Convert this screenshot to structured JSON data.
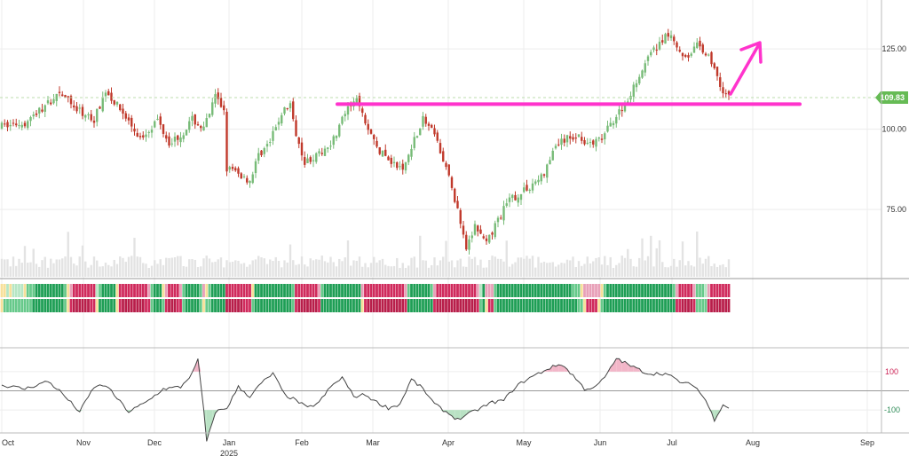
{
  "chart_data": {
    "type": "candlestick",
    "months": [
      "Oct",
      "Nov",
      "Dec",
      "Jan",
      "Feb",
      "Mar",
      "Apr",
      "May",
      "Jun",
      "Jul",
      "Aug",
      "Sep"
    ],
    "year_label": "2025",
    "price_axis": {
      "ticks": [
        "125.00",
        "100.00",
        "75.00"
      ],
      "tick_values": [
        125,
        100,
        75
      ],
      "ylim": [
        56,
        138
      ]
    },
    "last_price": {
      "value": 109.83,
      "label": "109.83"
    },
    "support_line_value": 107.8,
    "oscillator_axis": {
      "ticks": [
        "100",
        "-100"
      ],
      "tick_values": [
        100,
        -100
      ],
      "ylim": [
        -220,
        220
      ]
    },
    "price_path": [
      {
        "i": 0,
        "p": 101
      },
      {
        "i": 8,
        "p": 102
      },
      {
        "i": 16,
        "p": 108
      },
      {
        "i": 20,
        "p": 112
      },
      {
        "i": 26,
        "p": 106
      },
      {
        "i": 32,
        "p": 103
      },
      {
        "i": 36,
        "p": 112
      },
      {
        "i": 42,
        "p": 105
      },
      {
        "i": 48,
        "p": 97
      },
      {
        "i": 54,
        "p": 103
      },
      {
        "i": 58,
        "p": 96
      },
      {
        "i": 62,
        "p": 98
      },
      {
        "i": 66,
        "p": 103
      },
      {
        "i": 70,
        "p": 100
      },
      {
        "i": 74,
        "p": 110
      },
      {
        "i": 77,
        "p": 106
      },
      {
        "i": 78,
        "p": 88
      },
      {
        "i": 82,
        "p": 86
      },
      {
        "i": 86,
        "p": 84
      },
      {
        "i": 89,
        "p": 92
      },
      {
        "i": 93,
        "p": 96
      },
      {
        "i": 97,
        "p": 105
      },
      {
        "i": 100,
        "p": 108
      },
      {
        "i": 101,
        "p": 102
      },
      {
        "i": 105,
        "p": 90
      },
      {
        "i": 110,
        "p": 92
      },
      {
        "i": 115,
        "p": 97
      },
      {
        "i": 119,
        "p": 105
      },
      {
        "i": 123,
        "p": 109
      },
      {
        "i": 127,
        "p": 100
      },
      {
        "i": 131,
        "p": 93
      },
      {
        "i": 135,
        "p": 90
      },
      {
        "i": 139,
        "p": 87
      },
      {
        "i": 142,
        "p": 95
      },
      {
        "i": 146,
        "p": 103
      },
      {
        "i": 150,
        "p": 98
      },
      {
        "i": 154,
        "p": 88
      },
      {
        "i": 158,
        "p": 75
      },
      {
        "i": 161,
        "p": 62
      },
      {
        "i": 164,
        "p": 70
      },
      {
        "i": 168,
        "p": 64
      },
      {
        "i": 172,
        "p": 72
      },
      {
        "i": 176,
        "p": 78
      },
      {
        "i": 180,
        "p": 80
      },
      {
        "i": 184,
        "p": 83
      },
      {
        "i": 188,
        "p": 86
      },
      {
        "i": 192,
        "p": 95
      },
      {
        "i": 196,
        "p": 97
      },
      {
        "i": 200,
        "p": 98
      },
      {
        "i": 204,
        "p": 95
      },
      {
        "i": 208,
        "p": 97
      },
      {
        "i": 212,
        "p": 103
      },
      {
        "i": 216,
        "p": 108
      },
      {
        "i": 220,
        "p": 115
      },
      {
        "i": 224,
        "p": 122
      },
      {
        "i": 228,
        "p": 127
      },
      {
        "i": 232,
        "p": 130
      },
      {
        "i": 235,
        "p": 124
      },
      {
        "i": 238,
        "p": 123
      },
      {
        "i": 241,
        "p": 126
      },
      {
        "i": 244,
        "p": 124
      },
      {
        "i": 247,
        "p": 119
      },
      {
        "i": 250,
        "p": 112
      },
      {
        "i": 252,
        "p": 110
      }
    ],
    "oscillator_path": [
      {
        "i": 0,
        "v": 30
      },
      {
        "i": 8,
        "v": 10
      },
      {
        "i": 16,
        "v": 50
      },
      {
        "i": 20,
        "v": 0
      },
      {
        "i": 27,
        "v": -110
      },
      {
        "i": 32,
        "v": 20
      },
      {
        "i": 36,
        "v": 30
      },
      {
        "i": 40,
        "v": -40
      },
      {
        "i": 44,
        "v": -110
      },
      {
        "i": 50,
        "v": -60
      },
      {
        "i": 56,
        "v": 10
      },
      {
        "i": 62,
        "v": 20
      },
      {
        "i": 66,
        "v": 90
      },
      {
        "i": 68,
        "v": 160
      },
      {
        "i": 70,
        "v": -100
      },
      {
        "i": 71,
        "v": -270
      },
      {
        "i": 74,
        "v": -110
      },
      {
        "i": 78,
        "v": -90
      },
      {
        "i": 82,
        "v": 20
      },
      {
        "i": 86,
        "v": -30
      },
      {
        "i": 90,
        "v": 40
      },
      {
        "i": 94,
        "v": 90
      },
      {
        "i": 98,
        "v": -20
      },
      {
        "i": 102,
        "v": -50
      },
      {
        "i": 106,
        "v": -90
      },
      {
        "i": 110,
        "v": -60
      },
      {
        "i": 114,
        "v": 20
      },
      {
        "i": 118,
        "v": 70
      },
      {
        "i": 122,
        "v": -30
      },
      {
        "i": 126,
        "v": -20
      },
      {
        "i": 130,
        "v": -60
      },
      {
        "i": 134,
        "v": -90
      },
      {
        "i": 138,
        "v": -70
      },
      {
        "i": 142,
        "v": 60
      },
      {
        "i": 146,
        "v": 10
      },
      {
        "i": 150,
        "v": -70
      },
      {
        "i": 154,
        "v": -110
      },
      {
        "i": 158,
        "v": -150
      },
      {
        "i": 162,
        "v": -120
      },
      {
        "i": 166,
        "v": -90
      },
      {
        "i": 170,
        "v": -60
      },
      {
        "i": 174,
        "v": -50
      },
      {
        "i": 178,
        "v": 20
      },
      {
        "i": 182,
        "v": 60
      },
      {
        "i": 186,
        "v": 90
      },
      {
        "i": 190,
        "v": 120
      },
      {
        "i": 194,
        "v": 140
      },
      {
        "i": 198,
        "v": 80
      },
      {
        "i": 202,
        "v": 10
      },
      {
        "i": 206,
        "v": 20
      },
      {
        "i": 210,
        "v": 90
      },
      {
        "i": 213,
        "v": 170
      },
      {
        "i": 218,
        "v": 130
      },
      {
        "i": 224,
        "v": 90
      },
      {
        "i": 230,
        "v": 90
      },
      {
        "i": 236,
        "v": 40
      },
      {
        "i": 240,
        "v": 30
      },
      {
        "i": 244,
        "v": -50
      },
      {
        "i": 247,
        "v": -150
      },
      {
        "i": 250,
        "v": -70
      },
      {
        "i": 252,
        "v": -90
      }
    ],
    "colors": {
      "up": "#77bb77",
      "down": "#c0392b",
      "volume": "#e3e3e3",
      "grid": "#ececec",
      "support_line": "#ff33cc",
      "arrow": "#ff33cc",
      "last_price_badge": "#66bb55",
      "osc_line": "#444444",
      "osc_pos_fill": "#f2b6c8",
      "osc_neg_fill": "#b9e2c4",
      "osc_pos_label": "#cc2255",
      "osc_neg_label": "#2e8b57",
      "tape_colors": [
        "#1e9e55",
        "#66c98a",
        "#b6e6c4",
        "#f7e09a",
        "#e8a0b8",
        "#d02a5c",
        "#b81e4a"
      ]
    }
  }
}
